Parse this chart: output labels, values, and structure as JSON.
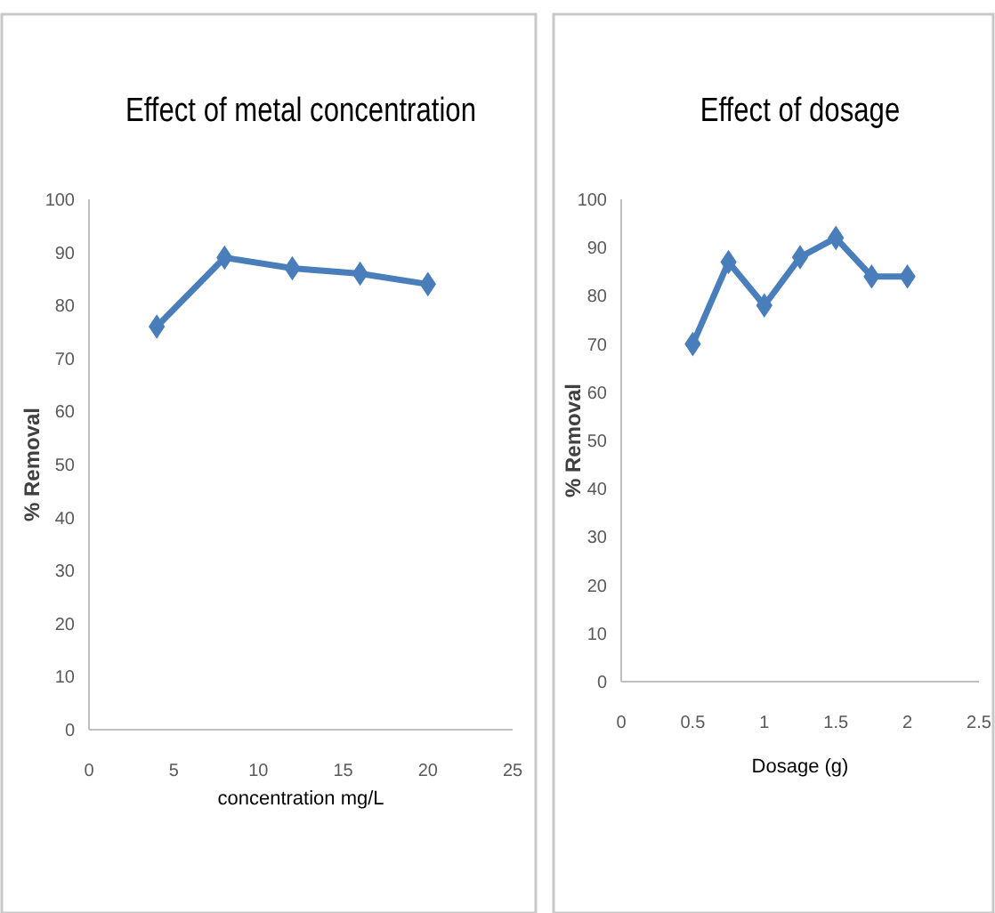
{
  "chart_data": [
    {
      "type": "line",
      "title": "Effect of metal concentration",
      "xlabel": "concentration mg/L",
      "ylabel": "% Removal",
      "x": [
        4,
        8,
        12,
        16,
        20
      ],
      "series": [
        {
          "color": "#4a7ebb",
          "values": [
            76,
            89,
            87,
            86,
            84
          ]
        }
      ],
      "xlim": [
        0,
        25
      ],
      "xticks": [
        0,
        5,
        10,
        15,
        20,
        25
      ],
      "ylim": [
        0,
        100
      ],
      "yticks": [
        0,
        10,
        20,
        30,
        40,
        50,
        60,
        70,
        80,
        90,
        100
      ],
      "marker": "diamond",
      "line_style": "solid"
    },
    {
      "type": "line",
      "title": "Effect of dosage",
      "xlabel": "Dosage (g)",
      "ylabel": "% Removal",
      "x": [
        0.5,
        0.75,
        1,
        1.25,
        1.5,
        1.75,
        2
      ],
      "series": [
        {
          "color": "#4a7ebb",
          "values": [
            70,
            87,
            78,
            88,
            92,
            84,
            84
          ]
        }
      ],
      "xlim": [
        0,
        2.5
      ],
      "xticks": [
        0,
        0.5,
        1,
        1.5,
        2,
        2.5
      ],
      "ylim": [
        0,
        100
      ],
      "yticks": [
        0,
        10,
        20,
        30,
        40,
        50,
        60,
        70,
        80,
        90,
        100
      ],
      "marker": "diamond",
      "line_style": "solid"
    }
  ]
}
